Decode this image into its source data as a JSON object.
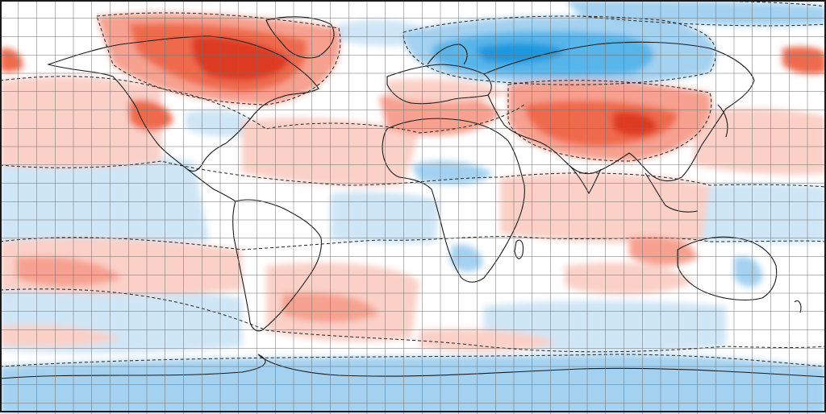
{
  "map": {
    "projection": "equirectangular",
    "graticule_visible": true,
    "graticule_color": "#6e6e6e",
    "coastline_color": "#1a1a1a",
    "frame_color": "#1a1a1a",
    "ocean_background": "#ffffff",
    "contour_lines": "dashed",
    "palette": {
      "warm_1": "#fbd0c7",
      "warm_2": "#f7a190",
      "warm_3": "#ef6a4e",
      "warm_4": "#dd3a24",
      "warm_5": "#b82418",
      "cool_1": "#cfe6f6",
      "cool_2": "#a4d1f0",
      "cool_3": "#58b5ea",
      "cool_4": "#1c98df",
      "neutral": "#ffffff"
    }
  }
}
